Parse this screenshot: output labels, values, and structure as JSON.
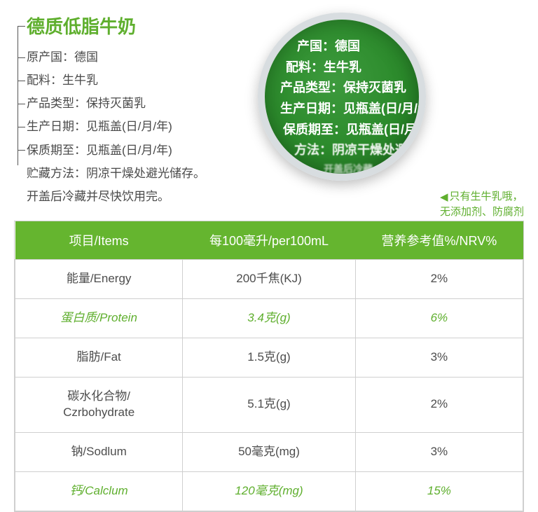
{
  "title": "德质低脂牛奶",
  "colors": {
    "brand_green": "#5FAF2E",
    "table_header_bg": "#65b52f",
    "text_gray": "#4a4a4a",
    "border_gray": "#cfcfcf",
    "magnifier_ring": "#d8dde0",
    "magnifier_bg_inner": "#3d9a3d",
    "magnifier_bg_outer": "#1d6b1d"
  },
  "info": {
    "lines": [
      "原产国：德国",
      "配料：生牛乳",
      "产品类型：保持灭菌乳",
      "生产日期：见瓶盖(日/月/年)",
      "保质期至：见瓶盖(日/月/年)",
      "贮藏方法：阴凉干燥处避光储存。"
    ],
    "extra": "开盖后冷藏并尽快饮用完。"
  },
  "magnifier": {
    "r1": "产国：德国",
    "r2": "配料：生牛乳",
    "r3": "产品类型：保持灭菌乳",
    "r4": "生产日期：见瓶盖(日/月/年)",
    "r5": "保质期至：见瓶盖(日/月/年",
    "r6": "方法：阴凉干燥处避",
    "r7": "开盖后冷藏"
  },
  "callout": {
    "arrow": "◀",
    "line1": "只有生牛乳哦，",
    "line2": "无添加剂、防腐剂"
  },
  "table": {
    "headers": [
      "项目/Items",
      "每100毫升/per100mL",
      "营养参考值%/NRV%"
    ],
    "rows": [
      {
        "cells": [
          "能量/Energy",
          "200千焦(KJ)",
          "2%"
        ],
        "highlight": false
      },
      {
        "cells": [
          "蛋白质/Protein",
          "3.4克(g)",
          "6%"
        ],
        "highlight": true
      },
      {
        "cells": [
          "脂肪/Fat",
          "1.5克(g)",
          "3%"
        ],
        "highlight": false
      },
      {
        "cells": [
          "碳水化合物/\nCzrbohydrate",
          "5.1克(g)",
          "2%"
        ],
        "highlight": false
      },
      {
        "cells": [
          "钠/Sodlum",
          "50毫克(mg)",
          "3%"
        ],
        "highlight": false
      },
      {
        "cells": [
          "钙/Calclum",
          "120毫克(mg)",
          "15%"
        ],
        "highlight": true
      }
    ]
  }
}
